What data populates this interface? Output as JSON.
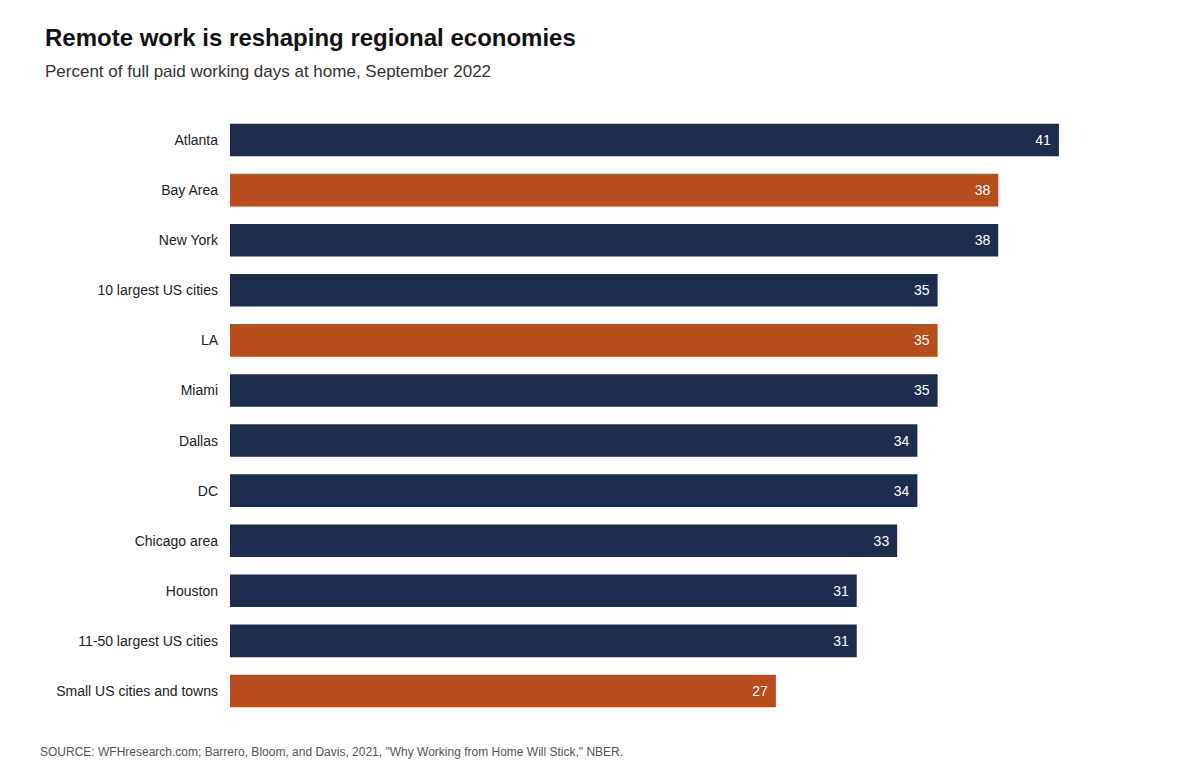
{
  "chart_data": {
    "type": "bar",
    "title": "Remote work is reshaping regional economies",
    "subtitle": "Percent of full paid working days at home, September 2022",
    "source": "SOURCE: WFHresearch.com; Barrero, Bloom, and Davis, 2021, \"Why Working from Home Will Stick,\" NBER.",
    "orientation": "horizontal",
    "categories": [
      "Atlanta",
      "Bay Area",
      "New York",
      "10 largest US cities",
      "LA",
      "Miami",
      "Dallas",
      "DC",
      "Chicago area",
      "Houston",
      "11-50 largest US cities",
      "Small US cities and towns"
    ],
    "values": [
      41,
      38,
      38,
      35,
      35,
      35,
      34,
      34,
      33,
      31,
      31,
      27
    ],
    "colors": [
      "#1e2d4e",
      "#b84c1a",
      "#1e2d4e",
      "#1e2d4e",
      "#b84c1a",
      "#1e2d4e",
      "#1e2d4e",
      "#1e2d4e",
      "#1e2d4e",
      "#1e2d4e",
      "#1e2d4e",
      "#b84c1a"
    ],
    "xlim": [
      0,
      46
    ],
    "tick_labels": "y",
    "data_labels": true,
    "grid": false
  }
}
